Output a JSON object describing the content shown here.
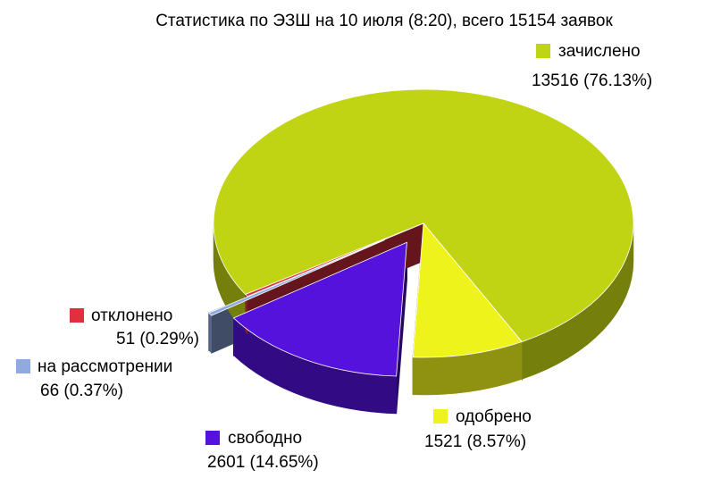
{
  "chart_data": {
    "type": "pie3d",
    "title": "Статистика по ЭЗШ на 10 июля (8:20), всего 15154 заявок",
    "categories": [
      "зачислено",
      "одобрено",
      "свободно",
      "на рассмотрении",
      "отклонено"
    ],
    "values": [
      13516,
      1521,
      2601,
      66,
      51
    ],
    "value_labels": [
      "13516 (76.13%)",
      "1521 (8.57%)",
      "2601 (14.65%)",
      "66 (0.37%)",
      "51 (0.29%)"
    ],
    "colors": [
      "#c1d414",
      "#eef31c",
      "#5412dc",
      "#8fa9e3",
      "#e0303e"
    ]
  }
}
